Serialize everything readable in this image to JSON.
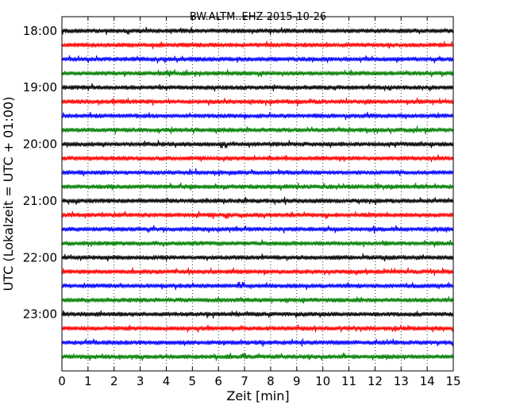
{
  "chart_data": {
    "type": "line",
    "title": "BW.ALTM..EHZ 2015-10-26",
    "xlabel": "Zeit  [min]",
    "ylabel": "UTC (Lokalzeit = UTC + 01:00)",
    "xlim": [
      0,
      15
    ],
    "x_ticks": [
      "0",
      "1",
      "2",
      "3",
      "4",
      "5",
      "6",
      "7",
      "8",
      "9",
      "10",
      "11",
      "12",
      "13",
      "14",
      "15"
    ],
    "y_ticks": [
      "18:00",
      "19:00",
      "20:00",
      "21:00",
      "22:00",
      "23:00"
    ],
    "y_range": [
      "17:45",
      "24:00"
    ],
    "grid": "vertical dotted",
    "trace_interval_min": 15,
    "trace_colors": [
      "#000000",
      "#ff0000",
      "#0000ff",
      "#008000"
    ],
    "traces": [
      {
        "start": "18:00",
        "color": "#000000"
      },
      {
        "start": "18:15",
        "color": "#ff0000"
      },
      {
        "start": "18:30",
        "color": "#0000ff"
      },
      {
        "start": "18:45",
        "color": "#008000"
      },
      {
        "start": "19:00",
        "color": "#000000"
      },
      {
        "start": "19:15",
        "color": "#ff0000"
      },
      {
        "start": "19:30",
        "color": "#0000ff"
      },
      {
        "start": "19:45",
        "color": "#008000"
      },
      {
        "start": "20:00",
        "color": "#000000"
      },
      {
        "start": "20:15",
        "color": "#ff0000"
      },
      {
        "start": "20:30",
        "color": "#0000ff"
      },
      {
        "start": "20:45",
        "color": "#008000"
      },
      {
        "start": "21:00",
        "color": "#000000"
      },
      {
        "start": "21:15",
        "color": "#ff0000"
      },
      {
        "start": "21:30",
        "color": "#0000ff"
      },
      {
        "start": "21:45",
        "color": "#008000"
      },
      {
        "start": "22:00",
        "color": "#000000"
      },
      {
        "start": "22:15",
        "color": "#ff0000"
      },
      {
        "start": "22:30",
        "color": "#0000ff"
      },
      {
        "start": "22:45",
        "color": "#008000"
      },
      {
        "start": "23:00",
        "color": "#000000"
      },
      {
        "start": "23:15",
        "color": "#ff0000"
      },
      {
        "start": "23:30",
        "color": "#0000ff"
      },
      {
        "start": "23:45",
        "color": "#008000"
      }
    ]
  }
}
